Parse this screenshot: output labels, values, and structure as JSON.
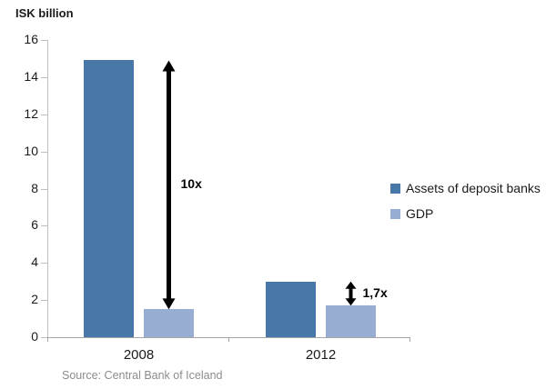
{
  "chart_data": {
    "type": "bar",
    "categories": [
      "2008",
      "2012"
    ],
    "series": [
      {
        "name": "Assets of deposit banks",
        "color": "#4878A8",
        "values": [
          14.9,
          3.0
        ]
      },
      {
        "name": "GDP",
        "color": "#97ADD2",
        "values": [
          1.5,
          1.7
        ]
      }
    ],
    "ylabel": "ISK billion",
    "xlabel": "",
    "ylim": [
      0,
      16
    ],
    "yticks": [
      0,
      2,
      4,
      6,
      8,
      10,
      12,
      14,
      16
    ],
    "grid": false,
    "legend_position": "right",
    "annotations": [
      {
        "category": "2008",
        "label": "10x",
        "arrow": "double-vertical"
      },
      {
        "category": "2012",
        "label": "1,7x",
        "arrow": "double-vertical"
      }
    ]
  },
  "source": "Source: Central Bank of Iceland",
  "colors": {
    "axis": "#bfbfbf",
    "text": "#1a1a1a",
    "annotation": "#000000",
    "source_text": "#8c8c8c"
  }
}
